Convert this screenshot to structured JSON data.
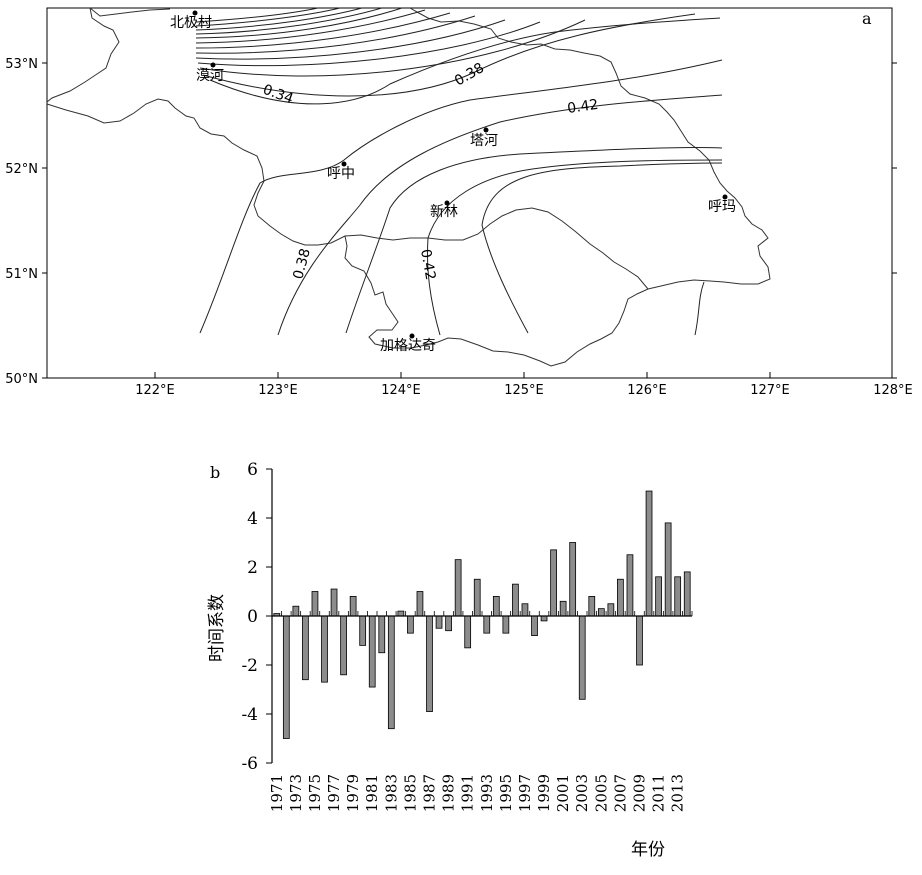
{
  "map": {
    "panel_label": "a",
    "lat_ticks": [
      "50°N",
      "51°N",
      "52°N",
      "53°N"
    ],
    "lon_ticks": [
      "122°E",
      "123°E",
      "124°E",
      "125°E",
      "126°E",
      "127°E",
      "128°E"
    ],
    "contour_labels": [
      "0.34",
      "0.38",
      "0.42",
      "0.38",
      "0.42"
    ],
    "stations": [
      "北极村",
      "漠河",
      "塔河",
      "呼中",
      "新林",
      "呼玛",
      "加格达奇"
    ]
  },
  "chart_data": {
    "type": "bar",
    "panel_label": "b",
    "ylabel": "时间系数",
    "xlabel": "年份",
    "ylim": [
      -6,
      6
    ],
    "yticks": [
      6,
      4,
      2,
      0,
      -2,
      -4,
      -6
    ],
    "xtick_labels": [
      "1971",
      "1973",
      "1975",
      "1977",
      "1979",
      "1981",
      "1983",
      "1985",
      "1987",
      "1989",
      "1991",
      "1993",
      "1995",
      "1997",
      "1999",
      "2001",
      "2003",
      "2005",
      "2007",
      "2009",
      "2011",
      "2013"
    ],
    "grid": false,
    "legend": "none",
    "categories": [
      "1971",
      "1972",
      "1973",
      "1974",
      "1975",
      "1976",
      "1977",
      "1978",
      "1979",
      "1980",
      "1981",
      "1982",
      "1983",
      "1984",
      "1985",
      "1986",
      "1987",
      "1988",
      "1989",
      "1990",
      "1991",
      "1992",
      "1993",
      "1994",
      "1995",
      "1996",
      "1997",
      "1998",
      "1999",
      "2000",
      "2001",
      "2002",
      "2003",
      "2004",
      "2005",
      "2006",
      "2007",
      "2008",
      "2009",
      "2010",
      "2011",
      "2012",
      "2013",
      "2014"
    ],
    "values": [
      0.1,
      -5.0,
      0.4,
      -2.6,
      1.0,
      -2.7,
      1.1,
      -2.4,
      0.8,
      -1.2,
      -2.9,
      -1.5,
      -4.6,
      0.2,
      -0.7,
      1.0,
      -3.9,
      -0.5,
      -0.6,
      2.3,
      -1.3,
      1.5,
      -0.7,
      0.8,
      -0.7,
      1.3,
      0.5,
      -0.8,
      -0.2,
      2.7,
      0.6,
      3.0,
      -3.4,
      0.8,
      0.3,
      0.5,
      1.5,
      2.5,
      -2.0,
      5.1,
      1.6,
      3.8,
      1.6,
      1.8
    ]
  }
}
